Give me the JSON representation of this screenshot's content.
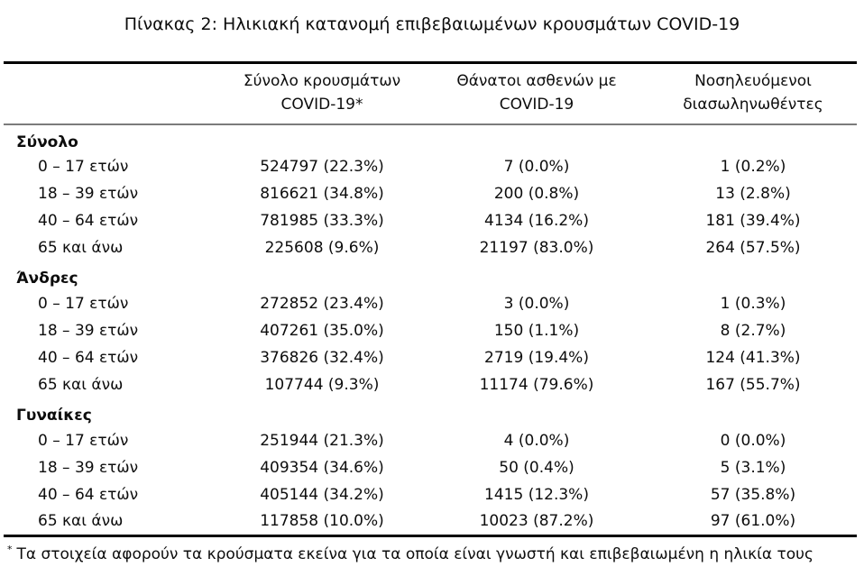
{
  "title": "Πίνακας 2: Ηλικιακή κατανομή επιβεβαιωμένων κρουσμάτων COVID-19",
  "colors": {
    "background": "#ffffff",
    "text": "#0d0d0d",
    "rule_heavy": "#000000",
    "rule_light": "#7b7b7b"
  },
  "table": {
    "columns": [
      {
        "line1": "",
        "line2": ""
      },
      {
        "line1": "Σύνολο κρουσμάτων",
        "line2": "COVID-19*"
      },
      {
        "line1": "Θάνατοι ασθενών με",
        "line2": "COVID-19"
      },
      {
        "line1": "Νοσηλευόμενοι",
        "line2": "διασωληνωθέντες"
      }
    ],
    "sections": [
      {
        "label": "Σύνολο",
        "rows": [
          {
            "age": "0 – 17 ετών",
            "cases": "524797 (22.3%)",
            "deaths": "7 (0.0%)",
            "intubated": "1 (0.2%)"
          },
          {
            "age": "18 – 39 ετών",
            "cases": "816621 (34.8%)",
            "deaths": "200 (0.8%)",
            "intubated": "13 (2.8%)"
          },
          {
            "age": "40 – 64 ετών",
            "cases": "781985 (33.3%)",
            "deaths": "4134 (16.2%)",
            "intubated": "181 (39.4%)"
          },
          {
            "age": "65 και άνω",
            "cases": "225608 (9.6%)",
            "deaths": "21197 (83.0%)",
            "intubated": "264 (57.5%)"
          }
        ]
      },
      {
        "label": "Άνδρες",
        "rows": [
          {
            "age": "0 – 17 ετών",
            "cases": "272852 (23.4%)",
            "deaths": "3 (0.0%)",
            "intubated": "1 (0.3%)"
          },
          {
            "age": "18 – 39 ετών",
            "cases": "407261 (35.0%)",
            "deaths": "150 (1.1%)",
            "intubated": "8 (2.7%)"
          },
          {
            "age": "40 – 64 ετών",
            "cases": "376826 (32.4%)",
            "deaths": "2719 (19.4%)",
            "intubated": "124 (41.3%)"
          },
          {
            "age": "65 και άνω",
            "cases": "107744 (9.3%)",
            "deaths": "11174 (79.6%)",
            "intubated": "167 (55.7%)"
          }
        ]
      },
      {
        "label": "Γυναίκες",
        "rows": [
          {
            "age": "0 – 17 ετών",
            "cases": "251944 (21.3%)",
            "deaths": "4 (0.0%)",
            "intubated": "0 (0.0%)"
          },
          {
            "age": "18 – 39 ετών",
            "cases": "409354 (34.6%)",
            "deaths": "50 (0.4%)",
            "intubated": "5 (3.1%)"
          },
          {
            "age": "40 – 64 ετών",
            "cases": "405144 (34.2%)",
            "deaths": "1415 (12.3%)",
            "intubated": "57 (35.8%)"
          },
          {
            "age": "65 και άνω",
            "cases": "117858 (10.0%)",
            "deaths": "10023 (87.2%)",
            "intubated": "97 (61.0%)"
          }
        ]
      }
    ]
  },
  "footnote": {
    "marker": "*",
    "text": "Τα στοιχεία αφορούν τα κρούσματα εκείνα για τα οποία είναι γνωστή και επιβεβαιωμένη η ηλικία τους"
  }
}
